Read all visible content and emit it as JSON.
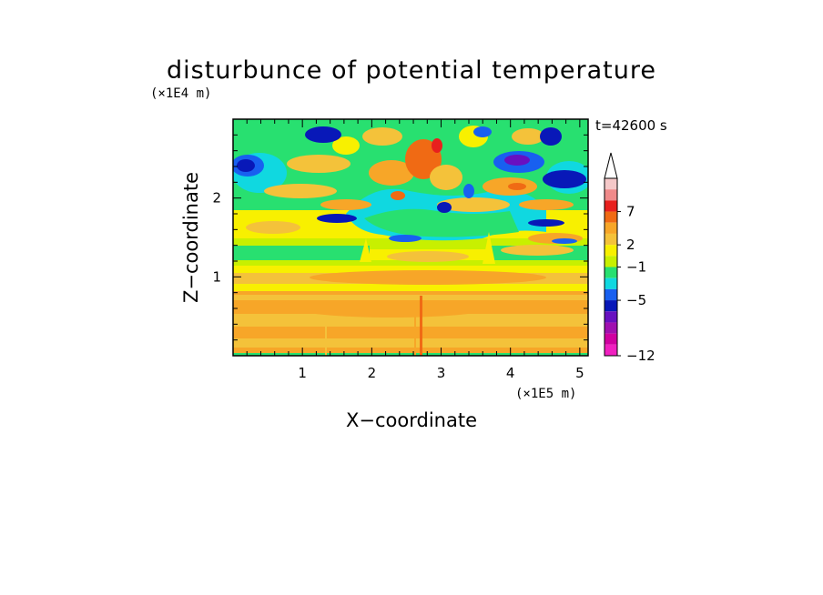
{
  "chart_data": {
    "type": "heatmap",
    "title": "disturbunce of potential temperature",
    "time_label": "t=42600 s",
    "xlabel": "X−coordinate",
    "ylabel": "Z−coordinate",
    "x_unit": "(×1E5 m)",
    "y_unit": "(×1E4 m)",
    "x_ticks": [
      "1",
      "2",
      "3",
      "4",
      "5"
    ],
    "y_ticks": [
      "1",
      "2"
    ],
    "xlim": [
      0,
      5.12
    ],
    "ylim": [
      0,
      3.0
    ],
    "colorbar": {
      "labels": [
        "7",
        "2",
        "−1",
        "−5",
        "−12"
      ],
      "colors_top_to_bottom": [
        "#f5c8c8",
        "#f08a8a",
        "#e8201e",
        "#f06a14",
        "#f7a628",
        "#f4c23a",
        "#f8f000",
        "#c8f000",
        "#28e070",
        "#10d8e0",
        "#1860f0",
        "#0818b8",
        "#6810c0",
        "#a010b0",
        "#d000a0",
        "#f020c0"
      ],
      "extend": "max"
    }
  }
}
